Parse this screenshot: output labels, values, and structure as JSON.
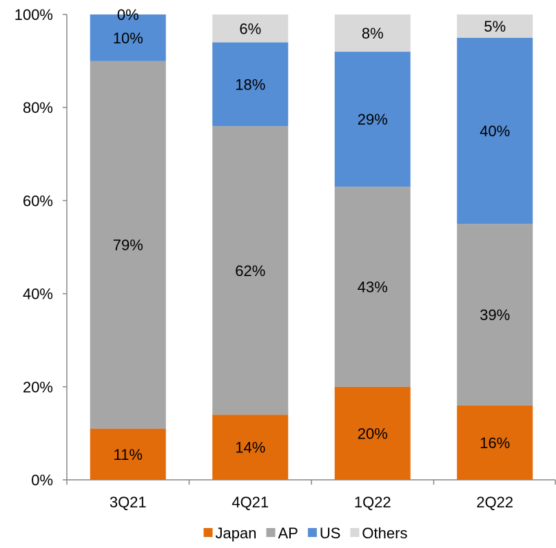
{
  "chart_data": {
    "type": "bar",
    "stacked": true,
    "categories": [
      "3Q21",
      "4Q21",
      "1Q22",
      "2Q22"
    ],
    "series": [
      {
        "name": "Japan",
        "values": [
          11,
          14,
          20,
          16
        ],
        "labels": [
          "11%",
          "14%",
          "20%",
          "16%"
        ],
        "color": "#E36C0A"
      },
      {
        "name": "AP",
        "values": [
          79,
          62,
          43,
          39
        ],
        "labels": [
          "79%",
          "62%",
          "43%",
          "39%"
        ],
        "color": "#A6A6A6"
      },
      {
        "name": "US",
        "values": [
          10,
          18,
          29,
          40
        ],
        "labels": [
          "10%",
          "18%",
          "29%",
          "40%"
        ],
        "color": "#558ED5"
      },
      {
        "name": "Others",
        "values": [
          0,
          6,
          8,
          5
        ],
        "labels": [
          "0%",
          "6%",
          "8%",
          "5%"
        ],
        "color": "#D9D9D9"
      }
    ],
    "ylim": [
      0,
      100
    ],
    "yticks": [
      0,
      20,
      40,
      60,
      80,
      100
    ],
    "ytick_labels": [
      "0%",
      "20%",
      "40%",
      "60%",
      "80%",
      "100%"
    ],
    "grid": false,
    "legend_position": "bottom",
    "xlabel": "",
    "ylabel": "",
    "title": ""
  }
}
